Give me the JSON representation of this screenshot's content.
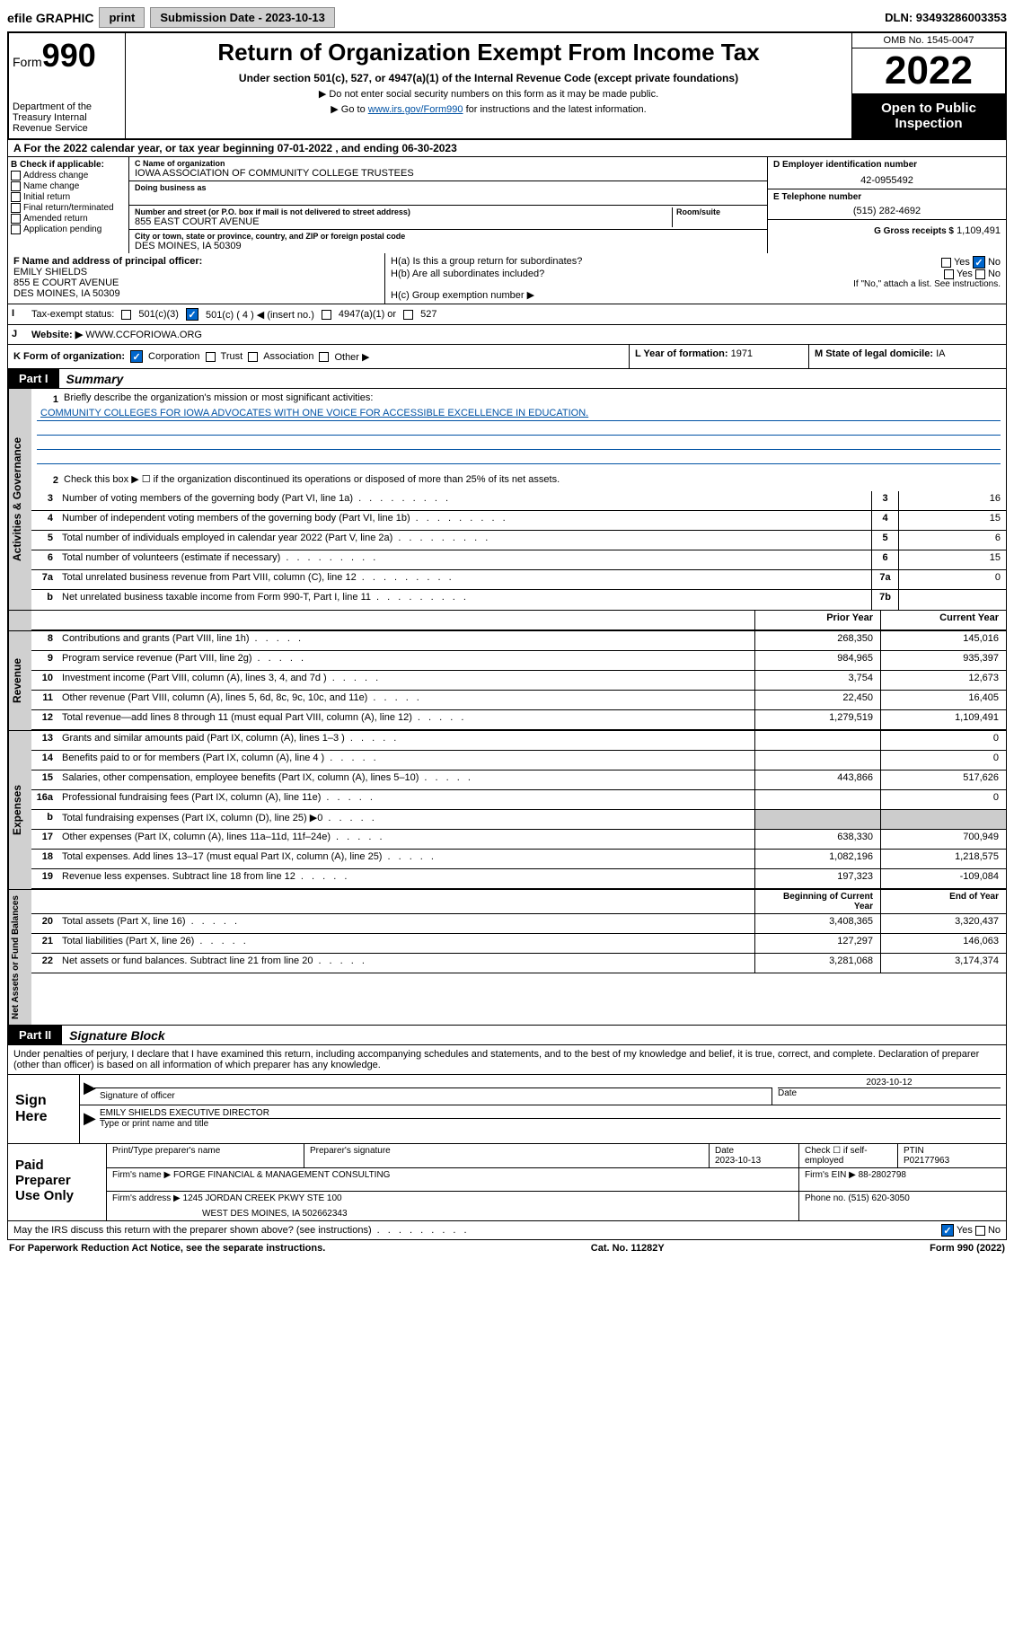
{
  "topbar": {
    "efile": "efile GRAPHIC",
    "print": "print",
    "submission": "Submission Date - 2023-10-13",
    "dln": "DLN: 93493286003353"
  },
  "header": {
    "form_prefix": "Form",
    "form_number": "990",
    "dept": "Department of the Treasury Internal Revenue Service",
    "title": "Return of Organization Exempt From Income Tax",
    "sub1": "Under section 501(c), 527, or 4947(a)(1) of the Internal Revenue Code (except private foundations)",
    "sub2": "▶ Do not enter social security numbers on this form as it may be made public.",
    "sub3_pre": "▶ Go to ",
    "sub3_link": "www.irs.gov/Form990",
    "sub3_post": " for instructions and the latest information.",
    "omb": "OMB No. 1545-0047",
    "year": "2022",
    "open_public": "Open to Public Inspection"
  },
  "row_a": {
    "text": "A For the 2022 calendar year, or tax year beginning 07-01-2022   , and ending 06-30-2023"
  },
  "section_b": {
    "header": "B Check if applicable:",
    "items": [
      "Address change",
      "Name change",
      "Initial return",
      "Final return/terminated",
      "Amended return",
      "Application pending"
    ]
  },
  "section_c": {
    "name_lbl": "C Name of organization",
    "name": "IOWA ASSOCIATION OF COMMUNITY COLLEGE TRUSTEES",
    "dba_lbl": "Doing business as",
    "addr_lbl": "Number and street (or P.O. box if mail is not delivered to street address)",
    "addr": "855 EAST COURT AVENUE",
    "room_lbl": "Room/suite",
    "city_lbl": "City or town, state or province, country, and ZIP or foreign postal code",
    "city": "DES MOINES, IA  50309"
  },
  "section_d": {
    "ein_lbl": "D Employer identification number",
    "ein": "42-0955492",
    "phone_lbl": "E Telephone number",
    "phone": "(515) 282-4692",
    "gross_lbl": "G Gross receipts $",
    "gross": "1,109,491"
  },
  "section_f": {
    "lbl": "F Name and address of principal officer:",
    "name": "EMILY SHIELDS",
    "addr1": "855 E COURT AVENUE",
    "addr2": "DES MOINES, IA  50309"
  },
  "section_h": {
    "ha": "H(a)  Is this a group return for subordinates?",
    "hb": "H(b)  Are all subordinates included?",
    "hb_note": "If \"No,\" attach a list. See instructions.",
    "hc": "H(c)  Group exemption number ▶",
    "yes": "Yes",
    "no": "No"
  },
  "row_i": {
    "lbl": "Tax-exempt status:",
    "opts": [
      "501(c)(3)",
      "501(c) ( 4 ) ◀ (insert no.)",
      "4947(a)(1) or",
      "527"
    ]
  },
  "row_j": {
    "lbl": "Website: ▶",
    "val": "WWW.CCFORIOWA.ORG"
  },
  "row_k": {
    "lbl": "K Form of organization:",
    "opts": [
      "Corporation",
      "Trust",
      "Association",
      "Other ▶"
    ],
    "l_lbl": "L Year of formation:",
    "l_val": "1971",
    "m_lbl": "M State of legal domicile:",
    "m_val": "IA"
  },
  "part1": {
    "label": "Part I",
    "title": "Summary"
  },
  "summary": {
    "line1_lbl": "Briefly describe the organization's mission or most significant activities:",
    "line1_val": "COMMUNITY COLLEGES FOR IOWA ADVOCATES WITH ONE VOICE FOR ACCESSIBLE EXCELLENCE IN EDUCATION.",
    "line2": "Check this box ▶ ☐  if the organization discontinued its operations or disposed of more than 25% of its net assets.",
    "lines": [
      {
        "num": "3",
        "desc": "Number of voting members of the governing body (Part VI, line 1a)",
        "box": "3",
        "val": "16"
      },
      {
        "num": "4",
        "desc": "Number of independent voting members of the governing body (Part VI, line 1b)",
        "box": "4",
        "val": "15"
      },
      {
        "num": "5",
        "desc": "Total number of individuals employed in calendar year 2022 (Part V, line 2a)",
        "box": "5",
        "val": "6"
      },
      {
        "num": "6",
        "desc": "Total number of volunteers (estimate if necessary)",
        "box": "6",
        "val": "15"
      },
      {
        "num": "7a",
        "desc": "Total unrelated business revenue from Part VIII, column (C), line 12",
        "box": "7a",
        "val": "0"
      },
      {
        "num": "b",
        "desc": "Net unrelated business taxable income from Form 990-T, Part I, line 11",
        "box": "7b",
        "val": ""
      }
    ],
    "col_prior": "Prior Year",
    "col_current": "Current Year"
  },
  "revenue": {
    "tab": "Revenue",
    "rows": [
      {
        "num": "8",
        "desc": "Contributions and grants (Part VIII, line 1h)",
        "prior": "268,350",
        "curr": "145,016"
      },
      {
        "num": "9",
        "desc": "Program service revenue (Part VIII, line 2g)",
        "prior": "984,965",
        "curr": "935,397"
      },
      {
        "num": "10",
        "desc": "Investment income (Part VIII, column (A), lines 3, 4, and 7d )",
        "prior": "3,754",
        "curr": "12,673"
      },
      {
        "num": "11",
        "desc": "Other revenue (Part VIII, column (A), lines 5, 6d, 8c, 9c, 10c, and 11e)",
        "prior": "22,450",
        "curr": "16,405"
      },
      {
        "num": "12",
        "desc": "Total revenue—add lines 8 through 11 (must equal Part VIII, column (A), line 12)",
        "prior": "1,279,519",
        "curr": "1,109,491"
      }
    ]
  },
  "expenses": {
    "tab": "Expenses",
    "rows": [
      {
        "num": "13",
        "desc": "Grants and similar amounts paid (Part IX, column (A), lines 1–3 )",
        "prior": "",
        "curr": "0"
      },
      {
        "num": "14",
        "desc": "Benefits paid to or for members (Part IX, column (A), line 4 )",
        "prior": "",
        "curr": "0"
      },
      {
        "num": "15",
        "desc": "Salaries, other compensation, employee benefits (Part IX, column (A), lines 5–10)",
        "prior": "443,866",
        "curr": "517,626"
      },
      {
        "num": "16a",
        "desc": "Professional fundraising fees (Part IX, column (A), line 11e)",
        "prior": "",
        "curr": "0"
      },
      {
        "num": "b",
        "desc": "Total fundraising expenses (Part IX, column (D), line 25) ▶0",
        "prior": "shade",
        "curr": "shade"
      },
      {
        "num": "17",
        "desc": "Other expenses (Part IX, column (A), lines 11a–11d, 11f–24e)",
        "prior": "638,330",
        "curr": "700,949"
      },
      {
        "num": "18",
        "desc": "Total expenses. Add lines 13–17 (must equal Part IX, column (A), line 25)",
        "prior": "1,082,196",
        "curr": "1,218,575"
      },
      {
        "num": "19",
        "desc": "Revenue less expenses. Subtract line 18 from line 12",
        "prior": "197,323",
        "curr": "-109,084"
      }
    ]
  },
  "netassets": {
    "tab": "Net Assets or Fund Balances",
    "hdr_prior": "Beginning of Current Year",
    "hdr_curr": "End of Year",
    "rows": [
      {
        "num": "20",
        "desc": "Total assets (Part X, line 16)",
        "prior": "3,408,365",
        "curr": "3,320,437"
      },
      {
        "num": "21",
        "desc": "Total liabilities (Part X, line 26)",
        "prior": "127,297",
        "curr": "146,063"
      },
      {
        "num": "22",
        "desc": "Net assets or fund balances. Subtract line 21 from line 20",
        "prior": "3,281,068",
        "curr": "3,174,374"
      }
    ]
  },
  "governance_tab": "Activities & Governance",
  "part2": {
    "label": "Part II",
    "title": "Signature Block"
  },
  "declaration": "Under penalties of perjury, I declare that I have examined this return, including accompanying schedules and statements, and to the best of my knowledge and belief, it is true, correct, and complete. Declaration of preparer (other than officer) is based on all information of which preparer has any knowledge.",
  "sign": {
    "label": "Sign Here",
    "sig_lbl": "Signature of officer",
    "date_lbl": "Date",
    "date": "2023-10-12",
    "name": "EMILY SHIELDS  EXECUTIVE DIRECTOR",
    "name_lbl": "Type or print name and title"
  },
  "preparer": {
    "label": "Paid Preparer Use Only",
    "h_name": "Print/Type preparer's name",
    "h_sig": "Preparer's signature",
    "h_date": "Date",
    "date": "2023-10-13",
    "h_check": "Check ☐ if self-employed",
    "h_ptin": "PTIN",
    "ptin": "P02177963",
    "firm_lbl": "Firm's name     ▶",
    "firm": "FORGE FINANCIAL & MANAGEMENT CONSULTING",
    "ein_lbl": "Firm's EIN ▶",
    "ein": "88-2802798",
    "addr_lbl": "Firm's address ▶",
    "addr1": "1245 JORDAN CREEK PKWY STE 100",
    "addr2": "WEST DES MOINES, IA  502662343",
    "phone_lbl": "Phone no.",
    "phone": "(515) 620-3050"
  },
  "footer": {
    "discuss": "May the IRS discuss this return with the preparer shown above? (see instructions)",
    "yes": "Yes",
    "no": "No",
    "paperwork": "For Paperwork Reduction Act Notice, see the separate instructions.",
    "cat": "Cat. No. 11282Y",
    "form": "Form 990 (2022)"
  },
  "colors": {
    "link": "#0052a4",
    "check": "#0066cc",
    "shade": "#cccccc"
  }
}
